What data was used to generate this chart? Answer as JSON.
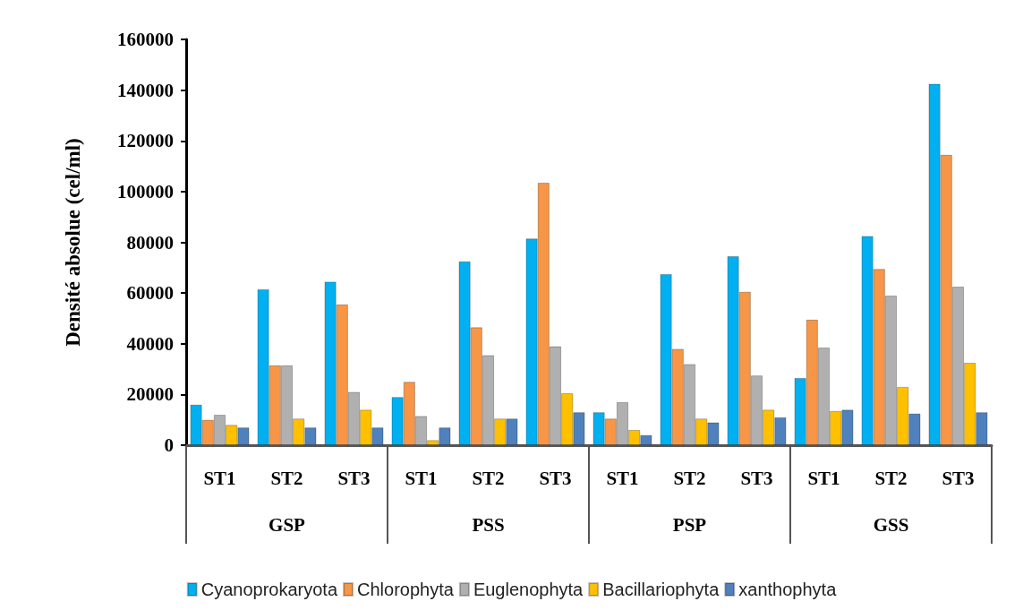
{
  "chart_data": {
    "type": "bar",
    "ylabel": "Densité absolue (cel/ml)",
    "categories": [
      "ST1",
      "ST2",
      "ST3",
      "ST1",
      "ST2",
      "ST3",
      "ST1",
      "ST2",
      "ST3",
      "ST1",
      "ST2",
      "ST3"
    ],
    "annotations": [
      "GSP",
      "PSS",
      "PSP",
      "GSS"
    ],
    "series": [
      {
        "name": "Cyanoprokaryota",
        "color": "#00b0f0",
        "values": [
          16000,
          61500,
          64500,
          19000,
          72500,
          81500,
          13000,
          67500,
          74500,
          26500,
          82500,
          142500
        ]
      },
      {
        "name": "Chlorophyta",
        "color": "#f79646",
        "values": [
          10000,
          31500,
          55500,
          25000,
          46500,
          103500,
          10500,
          38000,
          60500,
          49500,
          69500,
          114500
        ]
      },
      {
        "name": "Euglenophyta",
        "color": "#b0b0b0",
        "values": [
          12000,
          31500,
          21000,
          11500,
          35500,
          39000,
          17000,
          32000,
          27500,
          38500,
          59000,
          62500
        ]
      },
      {
        "name": "Bacillariophyta",
        "color": "#ffc000",
        "values": [
          8000,
          10500,
          14000,
          2000,
          10500,
          20500,
          6000,
          10500,
          14000,
          13500,
          23000,
          32500
        ]
      },
      {
        "name": "xanthophyta",
        "color": "#4f81bd",
        "values": [
          7000,
          7000,
          7000,
          7000,
          10500,
          13000,
          4000,
          9000,
          11000,
          14000,
          12500,
          13000
        ]
      }
    ],
    "ylim": [
      0,
      160000
    ],
    "yticks": [
      0,
      20000,
      40000,
      60000,
      80000,
      100000,
      120000,
      140000,
      160000
    ],
    "grid": false,
    "legend": "bottom"
  }
}
